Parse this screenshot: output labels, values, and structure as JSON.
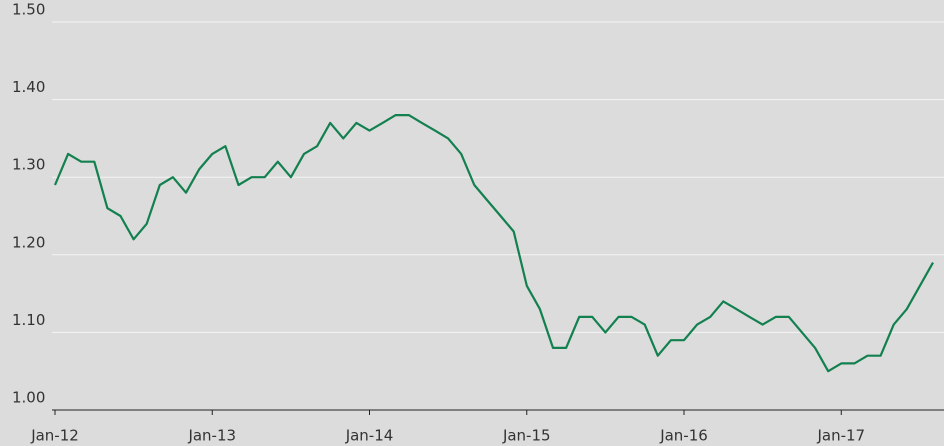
{
  "chart_data": {
    "type": "line",
    "x": [
      "2012-01",
      "2012-02",
      "2012-03",
      "2012-04",
      "2012-05",
      "2012-06",
      "2012-07",
      "2012-08",
      "2012-09",
      "2012-10",
      "2012-11",
      "2012-12",
      "2013-01",
      "2013-02",
      "2013-03",
      "2013-04",
      "2013-05",
      "2013-06",
      "2013-07",
      "2013-08",
      "2013-09",
      "2013-10",
      "2013-11",
      "2013-12",
      "2014-01",
      "2014-02",
      "2014-03",
      "2014-04",
      "2014-05",
      "2014-06",
      "2014-07",
      "2014-08",
      "2014-09",
      "2014-10",
      "2014-11",
      "2014-12",
      "2015-01",
      "2015-02",
      "2015-03",
      "2015-04",
      "2015-05",
      "2015-06",
      "2015-07",
      "2015-08",
      "2015-09",
      "2015-10",
      "2015-11",
      "2015-12",
      "2016-01",
      "2016-02",
      "2016-03",
      "2016-04",
      "2016-05",
      "2016-06",
      "2016-07",
      "2016-08",
      "2016-09",
      "2016-10",
      "2016-11",
      "2016-12",
      "2017-01",
      "2017-02",
      "2017-03",
      "2017-04",
      "2017-05",
      "2017-06",
      "2017-07",
      "2017-08"
    ],
    "series": [
      {
        "color": "#13804f",
        "values": [
          1.29,
          1.33,
          1.32,
          1.32,
          1.26,
          1.25,
          1.22,
          1.24,
          1.29,
          1.3,
          1.28,
          1.31,
          1.33,
          1.34,
          1.29,
          1.3,
          1.3,
          1.32,
          1.3,
          1.33,
          1.34,
          1.37,
          1.35,
          1.37,
          1.36,
          1.37,
          1.38,
          1.38,
          1.37,
          1.36,
          1.35,
          1.33,
          1.29,
          1.27,
          1.25,
          1.23,
          1.16,
          1.13,
          1.08,
          1.08,
          1.12,
          1.12,
          1.1,
          1.12,
          1.12,
          1.11,
          1.07,
          1.09,
          1.09,
          1.11,
          1.12,
          1.14,
          1.13,
          1.12,
          1.11,
          1.12,
          1.12,
          1.1,
          1.08,
          1.05,
          1.06,
          1.06,
          1.07,
          1.07,
          1.11,
          1.13,
          1.16,
          1.19
        ]
      }
    ],
    "xlim": [
      "2012-01",
      "2017-08"
    ],
    "xticks": [
      {
        "value": "2012-01",
        "label": "Jan-12"
      },
      {
        "value": "2013-01",
        "label": "Jan-13"
      },
      {
        "value": "2014-01",
        "label": "Jan-14"
      },
      {
        "value": "2015-01",
        "label": "Jan-15"
      },
      {
        "value": "2016-01",
        "label": "Jan-16"
      },
      {
        "value": "2017-01",
        "label": "Jan-17"
      }
    ],
    "ylim": [
      1.0,
      1.5
    ],
    "yticks": [
      {
        "value": 1.0,
        "label": "1.00"
      },
      {
        "value": 1.1,
        "label": "1.10"
      },
      {
        "value": 1.2,
        "label": "1.20"
      },
      {
        "value": 1.3,
        "label": "1.30"
      },
      {
        "value": 1.4,
        "label": "1.40"
      },
      {
        "value": 1.5,
        "label": "1.50"
      }
    ],
    "grid": true
  }
}
